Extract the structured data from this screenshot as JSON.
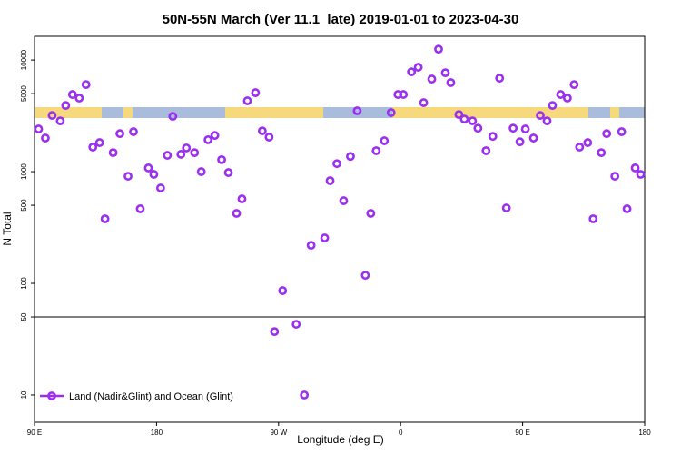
{
  "chart_data": {
    "type": "scatter",
    "title": "50N-55N March (Ver 11.1_late)   2019-01-01 to 2023-04-30",
    "xlabel": "Longitude (deg E)",
    "ylabel": "N Total",
    "log_y": true,
    "legend": "bottom-left",
    "hline": 50,
    "xlim": [
      90,
      540
    ],
    "ylim": [
      5.7,
      16300
    ],
    "xticks": [
      {
        "value": 90,
        "label": "90 E"
      },
      180,
      {
        "value": 270,
        "label": "90 W"
      },
      {
        "value": 360,
        "label": "0"
      },
      {
        "value": 450,
        "label": "90 E"
      },
      {
        "value": 540,
        "label": "180"
      }
    ],
    "yticks": [
      10,
      50,
      100,
      500,
      1000,
      5000,
      10000
    ],
    "series": [
      {
        "name": "Land (Nadir&Glint) and Ocean (Glint)",
        "color": "#9b2ff0",
        "x": [
          93,
          98,
          103,
          109,
          113,
          118,
          123,
          128,
          133,
          138,
          142,
          148,
          153,
          159,
          163,
          168,
          174,
          178,
          183,
          188,
          192,
          198,
          202,
          208,
          213,
          218,
          223,
          228,
          233,
          239,
          243,
          247,
          253,
          258,
          263,
          267,
          273,
          283,
          289,
          294,
          304,
          308,
          313,
          318,
          323,
          328,
          334,
          338,
          342,
          348,
          353,
          358,
          362,
          368,
          373,
          377,
          383,
          388,
          393,
          397,
          403,
          407,
          413,
          417,
          423,
          428,
          433,
          438,
          443,
          448,
          452,
          458,
          463,
          468,
          472,
          478,
          483,
          488,
          492,
          498,
          502,
          508,
          512,
          518,
          523,
          527,
          533,
          537
        ],
        "values": [
          2410,
          2000,
          3190,
          2850,
          3920,
          4910,
          4560,
          6030,
          1660,
          1820,
          378,
          1480,
          2190,
          910,
          2280,
          465,
          1080,
          946,
          714,
          1400,
          3130,
          1430,
          1630,
          1480,
          1000,
          1930,
          2110,
          1280,
          981,
          423,
          570,
          4310,
          5100,
          2320,
          2040,
          37,
          86,
          43,
          10,
          219,
          255,
          830,
          1180,
          549,
          1370,
          3510,
          118,
          423,
          1540,
          1890,
          3380,
          4910,
          4910,
          7830,
          8610,
          4150,
          6750,
          12500,
          7690,
          6270,
          3250,
          2960,
          2850,
          2450,
          1540,
          2070,
          6880,
          473,
          2450,
          1850,
          2410,
          2000,
          3190,
          2850,
          3920,
          4910,
          4560,
          6030,
          1660,
          1820,
          378,
          1480,
          2190,
          910,
          2280,
          465,
          1080,
          946
        ]
      }
    ]
  }
}
